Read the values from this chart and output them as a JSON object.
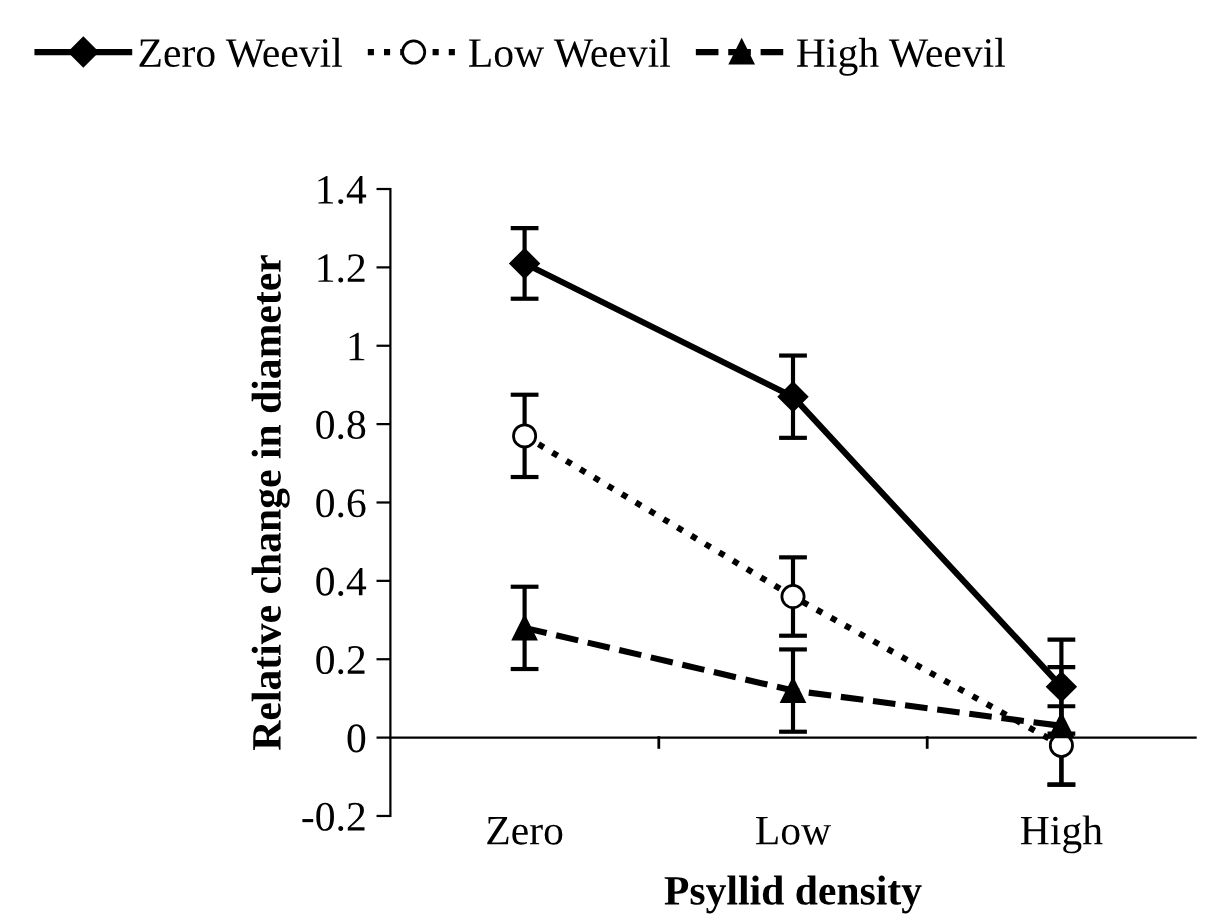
{
  "chart_data": {
    "type": "line",
    "xlabel": "Psyllid density",
    "ylabel": "Relative change in diameter",
    "categories": [
      "Zero",
      "Low",
      "High"
    ],
    "series": [
      {
        "name": "Zero Weevil",
        "color": "#000000",
        "values": [
          1.21,
          0.87,
          0.13
        ],
        "errors": [
          0.09,
          0.105,
          0.12
        ],
        "marker": "diamond",
        "line_style": "solid"
      },
      {
        "name": "Low Weevil",
        "color": "#000000",
        "values": [
          0.77,
          0.36,
          -0.02
        ],
        "errors": [
          0.105,
          0.1,
          0.1
        ],
        "marker": "circle",
        "line_style": "dotted"
      },
      {
        "name": "High Weevil",
        "color": "#000000",
        "values": [
          0.28,
          0.12,
          0.03
        ],
        "errors": [
          0.105,
          0.105,
          0.15
        ],
        "marker": "triangle",
        "line_style": "dashed"
      }
    ],
    "ylim": [
      -0.2,
      1.4
    ],
    "yticks": [
      {
        "value": -0.2,
        "label": "-0.2"
      },
      0,
      0.2,
      0.4,
      0.6,
      0.8,
      1,
      1.2,
      1.4
    ],
    "legend": "top"
  }
}
